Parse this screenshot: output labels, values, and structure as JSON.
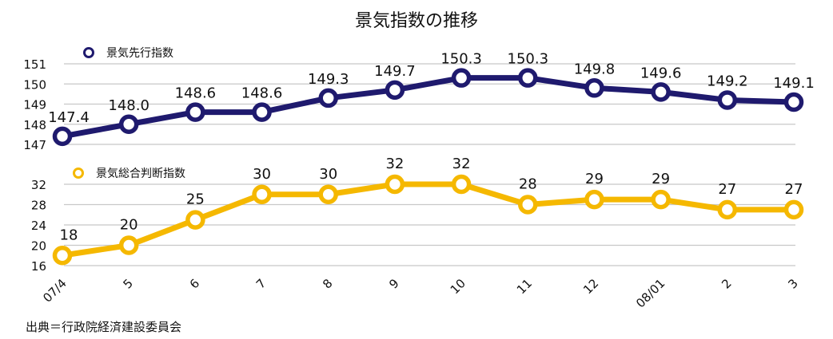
{
  "chart_data": {
    "type": "line",
    "title": "景気指数の推移",
    "categories": [
      "07/4",
      "5",
      "6",
      "7",
      "8",
      "9",
      "10",
      "11",
      "12",
      "08/01",
      "2",
      "3"
    ],
    "panels": [
      {
        "name": "景気先行指数",
        "color": "#1f1a6e",
        "ylim": [
          147,
          151
        ],
        "yticks": [
          "147",
          "148",
          "149",
          "150",
          "151"
        ],
        "values": [
          147.4,
          148.0,
          148.6,
          148.6,
          149.3,
          149.7,
          150.3,
          150.3,
          149.8,
          149.6,
          149.2,
          149.1
        ],
        "labels": [
          "147.4",
          "148.0",
          "148.6",
          "148.6",
          "149.3",
          "149.7",
          "150.3",
          "150.3",
          "149.8",
          "149.6",
          "149.2",
          "149.1"
        ]
      },
      {
        "name": "景気総合判断指数",
        "color": "#f5b800",
        "ylim": [
          16,
          32
        ],
        "yticks": [
          "16",
          "20",
          "24",
          "28",
          "32"
        ],
        "values": [
          18,
          20,
          25,
          30,
          30,
          32,
          32,
          28,
          29,
          29,
          27,
          27
        ],
        "labels": [
          "18",
          "20",
          "25",
          "30",
          "30",
          "32",
          "32",
          "28",
          "29",
          "29",
          "27",
          "27"
        ]
      }
    ],
    "grid": true,
    "legend": "top-left",
    "source": "出典＝行政院経済建設委員会"
  }
}
